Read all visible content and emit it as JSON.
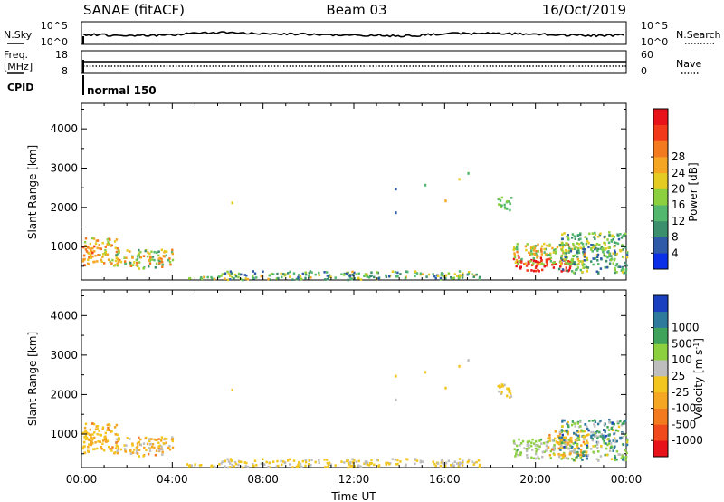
{
  "header": {
    "station": "SANAE (fitACF)",
    "beam": "Beam 03",
    "date": "16/Oct/2019"
  },
  "noise_panel": {
    "left_label": "N.Sky",
    "right_label": "N.Search",
    "left_ticks": [
      "10^5",
      "10^0"
    ],
    "right_ticks": [
      "10^5",
      "10^0"
    ]
  },
  "freq_panel": {
    "left_label_1": "Freq.",
    "left_label_2": "[MHz]",
    "right_label": "Nave",
    "left_ticks": [
      "18",
      "8"
    ],
    "right_ticks": [
      "60",
      "0"
    ]
  },
  "cpid": {
    "label": "CPID",
    "mode": "normal 150"
  },
  "colors": {
    "power_scale": [
      "#0a2fe6",
      "#2e5aa8",
      "#3c8f6c",
      "#53b86d",
      "#8ccf3f",
      "#e4cc22",
      "#f5a623",
      "#f47a1f",
      "#f23a1a",
      "#e8131a"
    ],
    "velocity_scale": [
      "#e8131a",
      "#f04a1c",
      "#f47a1f",
      "#f5a623",
      "#f3c61f",
      "#bebebe",
      "#8ccf3f",
      "#3fa35c",
      "#2e7a9c",
      "#1a3fbf"
    ]
  },
  "chart_data": [
    {
      "type": "heatmap",
      "name": "power",
      "xlabel": "",
      "ylabel": "Slant Range [km]",
      "xlim": [
        0,
        24
      ],
      "ylim": [
        150,
        4650
      ],
      "y_ticks": [
        "1000",
        "2000",
        "3000",
        "4000"
      ],
      "colorbar_label": "Power [dB]",
      "colorbar_ticks": [
        "4",
        "8",
        "12",
        "16",
        "20",
        "24",
        "28"
      ],
      "colorbar_range": [
        0,
        32
      ],
      "regions": [
        {
          "t0": 0.0,
          "t1": 1.6,
          "r0": 550,
          "r1": 1250,
          "v0": 14,
          "v1": 26
        },
        {
          "t0": 1.4,
          "t1": 4.0,
          "r0": 450,
          "r1": 950,
          "v0": 8,
          "v1": 24
        },
        {
          "t0": 4.4,
          "t1": 6.0,
          "r0": 180,
          "r1": 260,
          "v0": 8,
          "v1": 20
        },
        {
          "t0": 6.0,
          "t1": 17.5,
          "r0": 180,
          "r1": 400,
          "v0": 4,
          "v1": 20
        },
        {
          "t0": 18.3,
          "t1": 18.9,
          "r0": 1950,
          "r1": 2350,
          "v0": 10,
          "v1": 16
        },
        {
          "t0": 19.0,
          "t1": 21.5,
          "r0": 400,
          "r1": 750,
          "v0": 26,
          "v1": 32
        },
        {
          "t0": 19.0,
          "t1": 22.2,
          "r0": 550,
          "r1": 1100,
          "v0": 10,
          "v1": 24
        },
        {
          "t0": 21.0,
          "t1": 24.0,
          "r0": 350,
          "r1": 1400,
          "v0": 4,
          "v1": 18
        }
      ],
      "scatter_points": [
        [
          6.6,
          2150,
          18
        ],
        [
          13.8,
          2500,
          4
        ],
        [
          13.8,
          1900,
          6
        ],
        [
          15.1,
          2600,
          12
        ],
        [
          16.6,
          2750,
          16
        ],
        [
          17.0,
          2900,
          10
        ],
        [
          16.0,
          2200,
          20
        ],
        [
          18.7,
          2000,
          12
        ],
        [
          11.8,
          300,
          4
        ],
        [
          9.5,
          250,
          6
        ]
      ]
    },
    {
      "type": "heatmap",
      "name": "velocity",
      "xlabel": "Time UT",
      "ylabel": "Slant Range [km]",
      "xlim": [
        0,
        24
      ],
      "ylim": [
        150,
        4650
      ],
      "x_ticks": [
        "00:00",
        "04:00",
        "08:00",
        "12:00",
        "16:00",
        "20:00",
        "00:00"
      ],
      "y_ticks": [
        "1000",
        "2000",
        "3000",
        "4000"
      ],
      "colorbar_label": "Velocity [m s^-1]",
      "colorbar_ticks": [
        "-1000",
        "-500",
        "-100",
        "-25",
        "25",
        "100",
        "500",
        "1000"
      ],
      "colorbar_range": [
        -1200,
        1200
      ],
      "regions": [
        {
          "t0": 0.0,
          "t1": 1.6,
          "r0": 550,
          "r1": 1300,
          "v0": -500,
          "v1": -25
        },
        {
          "t0": 1.4,
          "t1": 4.0,
          "r0": 450,
          "r1": 950,
          "v0": -500,
          "v1": 100
        },
        {
          "t0": 4.4,
          "t1": 6.0,
          "r0": 180,
          "r1": 260,
          "v0": -100,
          "v1": 25
        },
        {
          "t0": 6.0,
          "t1": 17.5,
          "r0": 180,
          "r1": 400,
          "v0": -100,
          "v1": 100
        },
        {
          "t0": 18.3,
          "t1": 18.9,
          "r0": 1950,
          "r1": 2350,
          "v0": -100,
          "v1": 50
        },
        {
          "t0": 19.0,
          "t1": 21.5,
          "r0": 400,
          "r1": 900,
          "v0": 25,
          "v1": 500
        },
        {
          "t0": 20.5,
          "t1": 22.3,
          "r0": 450,
          "r1": 1100,
          "v0": -500,
          "v1": -25
        },
        {
          "t0": 21.0,
          "t1": 24.0,
          "r0": 350,
          "r1": 1400,
          "v0": -100,
          "v1": 1000
        }
      ],
      "scatter_points": [
        [
          6.6,
          2150,
          -100
        ],
        [
          13.8,
          2500,
          -25
        ],
        [
          13.8,
          1900,
          25
        ],
        [
          15.1,
          2600,
          -100
        ],
        [
          16.6,
          2750,
          -25
        ],
        [
          17.0,
          2900,
          25
        ],
        [
          16.0,
          2200,
          -100
        ],
        [
          18.7,
          2000,
          -25
        ],
        [
          11.8,
          300,
          100
        ],
        [
          9.5,
          250,
          -100
        ]
      ]
    }
  ]
}
